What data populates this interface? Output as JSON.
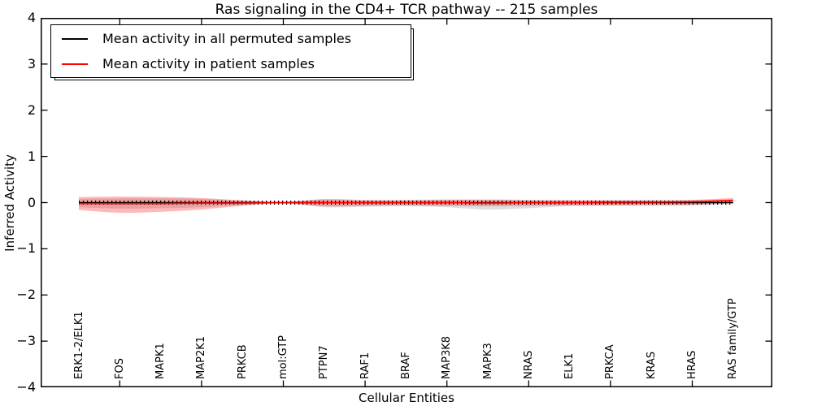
{
  "title": "Ras signaling in the CD4+ TCR pathway -- 215 samples",
  "axes": {
    "xlabel": "Cellular Entities",
    "ylabel": "Inferred Activity"
  },
  "legend": {
    "position": "upper left",
    "items": [
      {
        "label": "Mean activity in all permuted samples",
        "color": "#000000"
      },
      {
        "label": "Mean activity in patient samples",
        "color": "#ff0000"
      }
    ]
  },
  "chart_data": {
    "type": "line",
    "title": "Ras signaling in the CD4+ TCR pathway -- 215 samples",
    "xlabel": "Cellular Entities",
    "ylabel": "Inferred Activity",
    "ylim": [
      -4,
      4
    ],
    "yticks": [
      4,
      3,
      2,
      1,
      0,
      -1,
      -2,
      -3,
      -4
    ],
    "xtick_step": 2,
    "grid": false,
    "legend_position": "upper left",
    "categories": [
      "ERK1-2/ELK1",
      "FOS",
      "MAPK1",
      "MAP2K1",
      "PRKCB",
      "mol:GTP",
      "PTPN7",
      "RAF1",
      "BRAF",
      "MAP3K8",
      "MAPK3",
      "NRAS",
      "ELK1",
      "PRKCA",
      "KRAS",
      "HRAS",
      "RAS family/GTP"
    ],
    "series": [
      {
        "name": "Mean activity in all permuted samples",
        "color": "#000000",
        "marker": "vertical-tick",
        "values": [
          0,
          0,
          0,
          0,
          0,
          0,
          0,
          0,
          0,
          0,
          0,
          0,
          0,
          0,
          0,
          0,
          0
        ],
        "band_upper": [
          0.08,
          0.09,
          0.09,
          0.08,
          0.04,
          0.01,
          0.08,
          0.06,
          0.06,
          0.07,
          0.07,
          0.06,
          0.05,
          0.05,
          0.05,
          0.04,
          0.04
        ],
        "band_lower": [
          -0.1,
          -0.13,
          -0.12,
          -0.1,
          -0.05,
          -0.01,
          -0.1,
          -0.09,
          -0.08,
          -0.1,
          -0.15,
          -0.12,
          -0.08,
          -0.07,
          -0.07,
          -0.06,
          -0.04
        ],
        "band_color": "rgba(128,128,128,0.25)"
      },
      {
        "name": "Mean activity in patient samples",
        "color": "#ff0000",
        "marker": "none",
        "values": [
          -0.02,
          -0.02,
          -0.02,
          -0.01,
          -0.01,
          0,
          0,
          0,
          0,
          0,
          -0.01,
          0,
          0,
          0.01,
          0.01,
          0.02,
          0.05
        ],
        "band_upper": [
          0.12,
          0.13,
          0.12,
          0.1,
          0.05,
          0.01,
          0.07,
          0.05,
          0.05,
          0.06,
          0.06,
          0.05,
          0.05,
          0.05,
          0.05,
          0.06,
          0.1
        ],
        "band_lower": [
          -0.16,
          -0.22,
          -0.2,
          -0.15,
          -0.07,
          -0.01,
          -0.08,
          -0.07,
          -0.06,
          -0.07,
          -0.08,
          -0.07,
          -0.06,
          -0.06,
          -0.05,
          -0.05,
          0.0
        ],
        "band_color": "rgba(255,0,0,0.28)"
      }
    ]
  }
}
